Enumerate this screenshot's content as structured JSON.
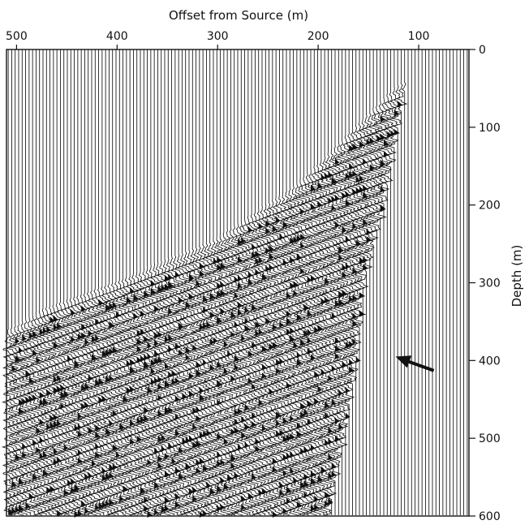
{
  "chart_data": {
    "type": "wiggle-trace seismic section",
    "xlabel": "Offset from Source (m)",
    "ylabel": "Depth (m)",
    "x_ticks": [
      500,
      400,
      300,
      200,
      100
    ],
    "y_ticks": [
      0,
      100,
      200,
      300,
      400,
      500,
      600
    ],
    "x_range": [
      510,
      50
    ],
    "y_range": [
      0,
      600
    ],
    "y_axis_side": "right",
    "x_axis_side": "top",
    "trace_count": 133,
    "trace_color": "#111111",
    "annotation": {
      "type": "arrow",
      "points_to": {
        "offset": 123,
        "depth": 395
      },
      "from": {
        "offset": 85,
        "depth": 413
      }
    },
    "wavefield_boundary": [
      {
        "depth": 40,
        "offset": 118
      },
      {
        "depth": 100,
        "offset": 165
      },
      {
        "depth": 170,
        "offset": 220
      },
      {
        "depth": 240,
        "offset": 300
      },
      {
        "depth": 290,
        "offset": 390
      },
      {
        "depth": 330,
        "offset": 470
      },
      {
        "depth": 360,
        "offset": 510
      }
    ],
    "right_edge_of_energy": [
      {
        "depth": 40,
        "offset": 112
      },
      {
        "depth": 200,
        "offset": 135
      },
      {
        "depth": 300,
        "offset": 155
      },
      {
        "depth": 400,
        "offset": 162
      },
      {
        "depth": 500,
        "offset": 175
      },
      {
        "depth": 600,
        "offset": 190
      }
    ]
  }
}
